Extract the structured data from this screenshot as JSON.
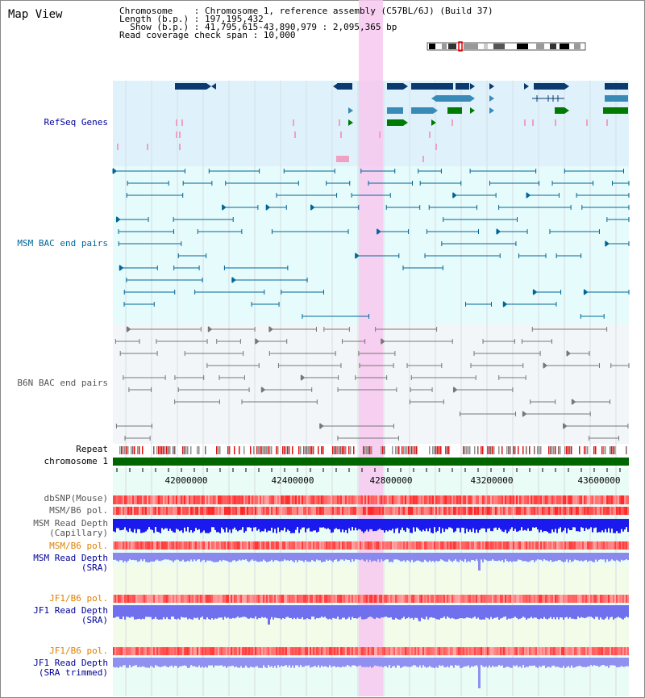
{
  "app": {
    "title": "Map View"
  },
  "info": {
    "line1": "Chromosome    : Chromosome 1, reference assembly (C57BL/6J) (Build 37)",
    "line2": "Length (b.p.) : 197,195,432",
    "line3": "  Show (b.p.) : 41,795,615-43,890,979 : 2,095,365 bp",
    "line4": "Read coverage check span : 10,000"
  },
  "tracks": {
    "refseq": "RefSeq Genes",
    "msm_bac": "MSM BAC end pairs",
    "b6n_bac": "B6N BAC end pairs",
    "repeat": "Repeat",
    "chromosome": "chromosome 1",
    "dbsnp": "dbSNP(Mouse)",
    "msm_b6_pol1": "MSM/B6 pol.",
    "msm_depth_cap_1": "MSM Read Depth",
    "msm_depth_cap_2": "(Capillary)",
    "msm_b6_pol2": "MSM/B6 pol.",
    "msm_depth_sra_1": "MSM Read Depth",
    "msm_depth_sra_2": "(SRA)",
    "jf1_pol1": "JF1/B6 pol.",
    "jf1_depth_sra_1": "JF1 Read Depth",
    "jf1_depth_sra_2": "(SRA)",
    "jf1_pol2": "JF1/B6 pol.",
    "jf1_depth_trim_1": "JF1 Read Depth",
    "jf1_depth_trim_2": "(SRA trimmed)"
  },
  "axis": {
    "ticks": [
      "42000000",
      "42400000",
      "42800000",
      "43200000",
      "43600000"
    ]
  },
  "colors": {
    "refseq_label": "#000099",
    "msm_label": "#006699",
    "b6n_label": "#555555",
    "pol_label": "#e08000",
    "gene_dark": "#0a3a6e",
    "gene_mid": "#3a8ab8",
    "gene_green": "#007a00",
    "highlight": "#f7c8ee",
    "chromosome_bar": "#006600"
  }
}
